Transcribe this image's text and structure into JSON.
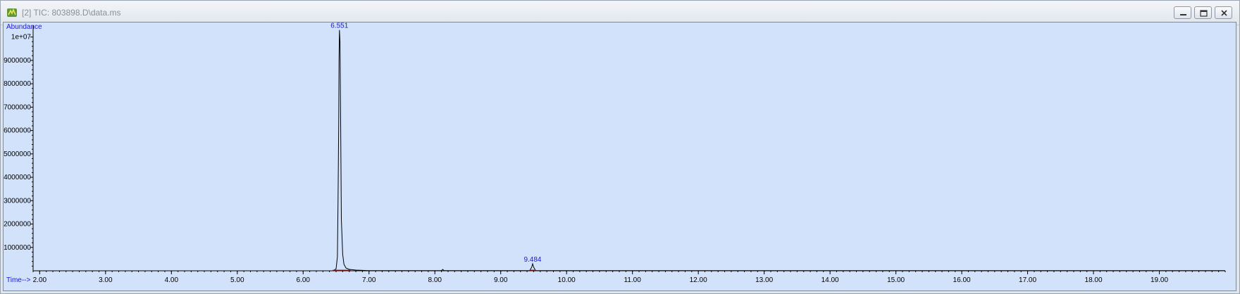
{
  "window": {
    "title": "[2] TIC: 803898.D\\data.ms",
    "controls": {
      "minimize": "minimize",
      "restore": "restore",
      "close": "close"
    }
  },
  "chart_data": {
    "type": "line",
    "title": "",
    "xlabel": "Time-->",
    "ylabel": "Abundance",
    "xlim": [
      1.9,
      20.0
    ],
    "ylim": [
      0,
      10500000
    ],
    "x_ticks": [
      "2.00",
      "3.00",
      "4.00",
      "5.00",
      "6.00",
      "7.00",
      "8.00",
      "9.00",
      "10.00",
      "11.00",
      "12.00",
      "13.00",
      "14.00",
      "15.00",
      "16.00",
      "17.00",
      "18.00",
      "19.00"
    ],
    "y_ticks": [
      "1000000",
      "2000000",
      "3000000",
      "4000000",
      "5000000",
      "6000000",
      "7000000",
      "8000000",
      "9000000",
      "1e+07"
    ],
    "grid": false,
    "line_color": "#000000",
    "label_color": "#1a1ad0",
    "series": [
      {
        "x": [
          1.9,
          6.45,
          6.5,
          6.52,
          6.53,
          6.54,
          6.545,
          6.551,
          6.56,
          6.57,
          6.58,
          6.6,
          6.62,
          6.65,
          6.7,
          6.8,
          7.0,
          8.1,
          8.12,
          8.14,
          9.44,
          9.47,
          9.484,
          9.5,
          9.53,
          20.0
        ],
        "y": [
          0,
          0,
          80000,
          600000,
          3000000,
          6500000,
          9000000,
          10300000,
          9800000,
          6000000,
          2200000,
          700000,
          280000,
          120000,
          60000,
          30000,
          10000,
          10000,
          60000,
          10000,
          10000,
          150000,
          300000,
          150000,
          10000,
          10000
        ]
      }
    ],
    "annotations": [
      {
        "label": "6.551",
        "x": 6.551,
        "y": 10300000
      },
      {
        "label": "9.484",
        "x": 9.484,
        "y": 300000
      }
    ]
  }
}
